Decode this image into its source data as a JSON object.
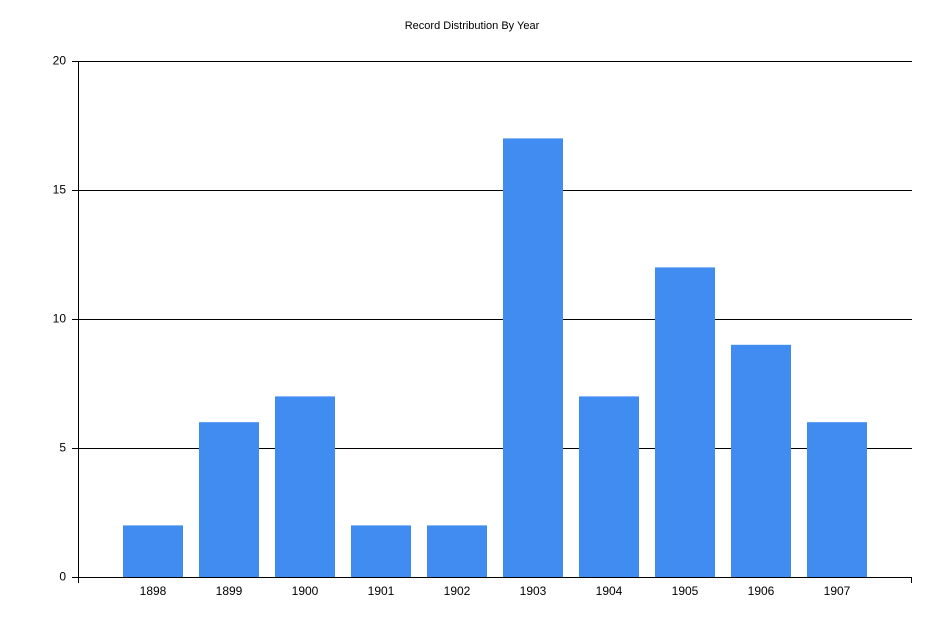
{
  "chart_data": {
    "type": "bar",
    "title": "Record Distribution By Year",
    "categories": [
      "1898",
      "1899",
      "1900",
      "1901",
      "1902",
      "1903",
      "1904",
      "1905",
      "1906",
      "1907"
    ],
    "values": [
      2,
      6,
      7,
      2,
      2,
      17,
      7,
      12,
      9,
      6
    ],
    "color": "#418cf0",
    "ylim": [
      0,
      20
    ],
    "yticks": [
      0,
      5,
      10,
      15,
      20
    ],
    "grid": true
  }
}
